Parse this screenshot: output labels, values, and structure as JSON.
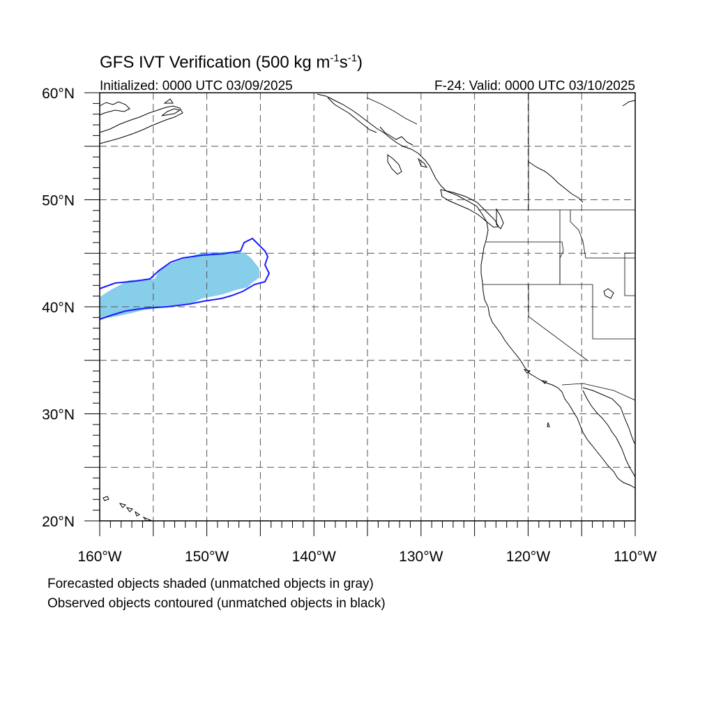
{
  "title": {
    "main": "GFS IVT Verification (500 kg m",
    "exp1": "-1",
    "mid": "s",
    "exp2": "-1",
    "close": ")"
  },
  "subtitle": {
    "initialized": "Initialized: 0000 UTC 03/09/2025",
    "valid": "F-24: Valid: 0000 UTC 03/10/2025"
  },
  "axes": {
    "lat_labels": [
      "20°N",
      "30°N",
      "40°N",
      "50°N",
      "60°N"
    ],
    "lon_labels": [
      "160°W",
      "150°W",
      "140°W",
      "130°W",
      "120°W",
      "110°W"
    ],
    "lat_range": [
      20,
      60
    ],
    "lon_range": [
      -160,
      -110
    ]
  },
  "legend": {
    "line1": "Forecasted objects shaded (unmatched objects in gray)",
    "line2": "Observed objects contoured (unmatched objects in black)"
  },
  "colors": {
    "forecast_fill": "#87ceeb",
    "observed_contour": "#1a1aff",
    "coastline": "#000000",
    "grid": "#555555"
  }
}
